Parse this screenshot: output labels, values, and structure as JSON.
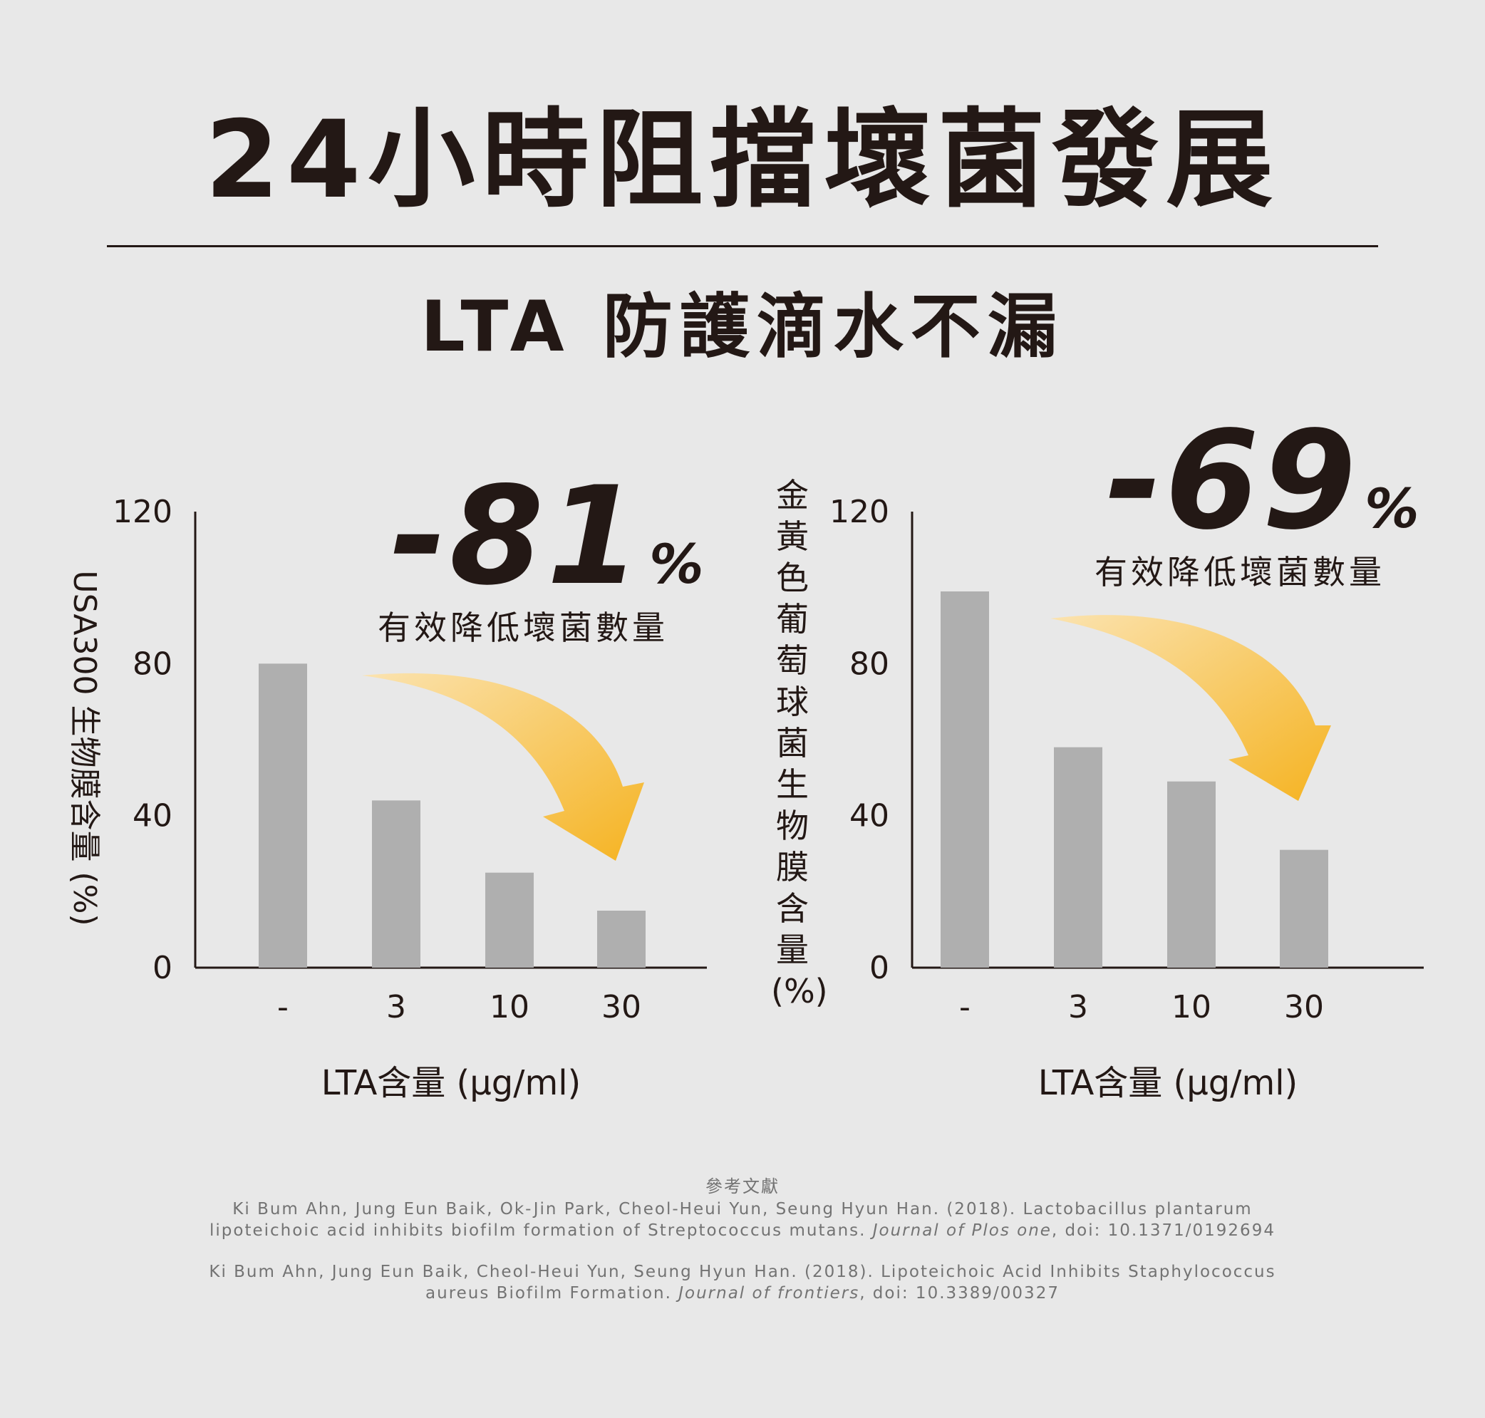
{
  "header": {
    "title": "24小時阻擋壞菌發展",
    "subtitle": "LTA 防護滴水不漏"
  },
  "colors": {
    "background": "#e8e8e8",
    "bar": "#afafaf",
    "text": "#231815",
    "arrow_start": "#fbe3b0",
    "arrow_end": "#f5b321"
  },
  "chart_data": [
    {
      "type": "bar",
      "categories": [
        "-",
        "3",
        "10",
        "30"
      ],
      "values": [
        80,
        44,
        25,
        15
      ],
      "ylim": [
        0,
        120
      ],
      "yticks": [
        0,
        40,
        80,
        120
      ],
      "ylabel": "USA300 生物膜含量 (%)",
      "xlabel": "LTA含量 (μg/ml)",
      "grid": false,
      "annotation": {
        "value": "-81",
        "unit": "%",
        "caption": "有效降低壞菌數量"
      }
    },
    {
      "type": "bar",
      "categories": [
        "-",
        "3",
        "10",
        "30"
      ],
      "values": [
        99,
        58,
        49,
        31
      ],
      "ylim": [
        0,
        120
      ],
      "yticks": [
        0,
        40,
        80,
        120
      ],
      "ylabel": "金黃色葡萄球菌生物膜含量(%)",
      "xlabel": "LTA含量 (μg/ml)",
      "grid": false,
      "annotation": {
        "value": "-69",
        "unit": "%",
        "caption": "有效降低壞菌數量"
      }
    }
  ],
  "references": {
    "heading": "參考文獻",
    "items": [
      {
        "text": "Ki Bum Ahn, Jung Eun Baik, Ok-Jin Park, Cheol-Heui Yun, Seung Hyun Han. (2018). Lactobacillus plantarum lipoteichoic acid inhibits biofilm formation of Streptococcus mutans. ",
        "journal": "Journal of Plos one",
        "doi": ", doi: 10.1371/0192694"
      },
      {
        "text": "Ki Bum Ahn, Jung Eun Baik, Cheol-Heui Yun, Seung Hyun Han. (2018). Lipoteichoic Acid Inhibits Staphylococcus aureus Biofilm Formation. ",
        "journal": "Journal of frontiers",
        "doi": ", doi: 10.3389/00327"
      }
    ]
  }
}
